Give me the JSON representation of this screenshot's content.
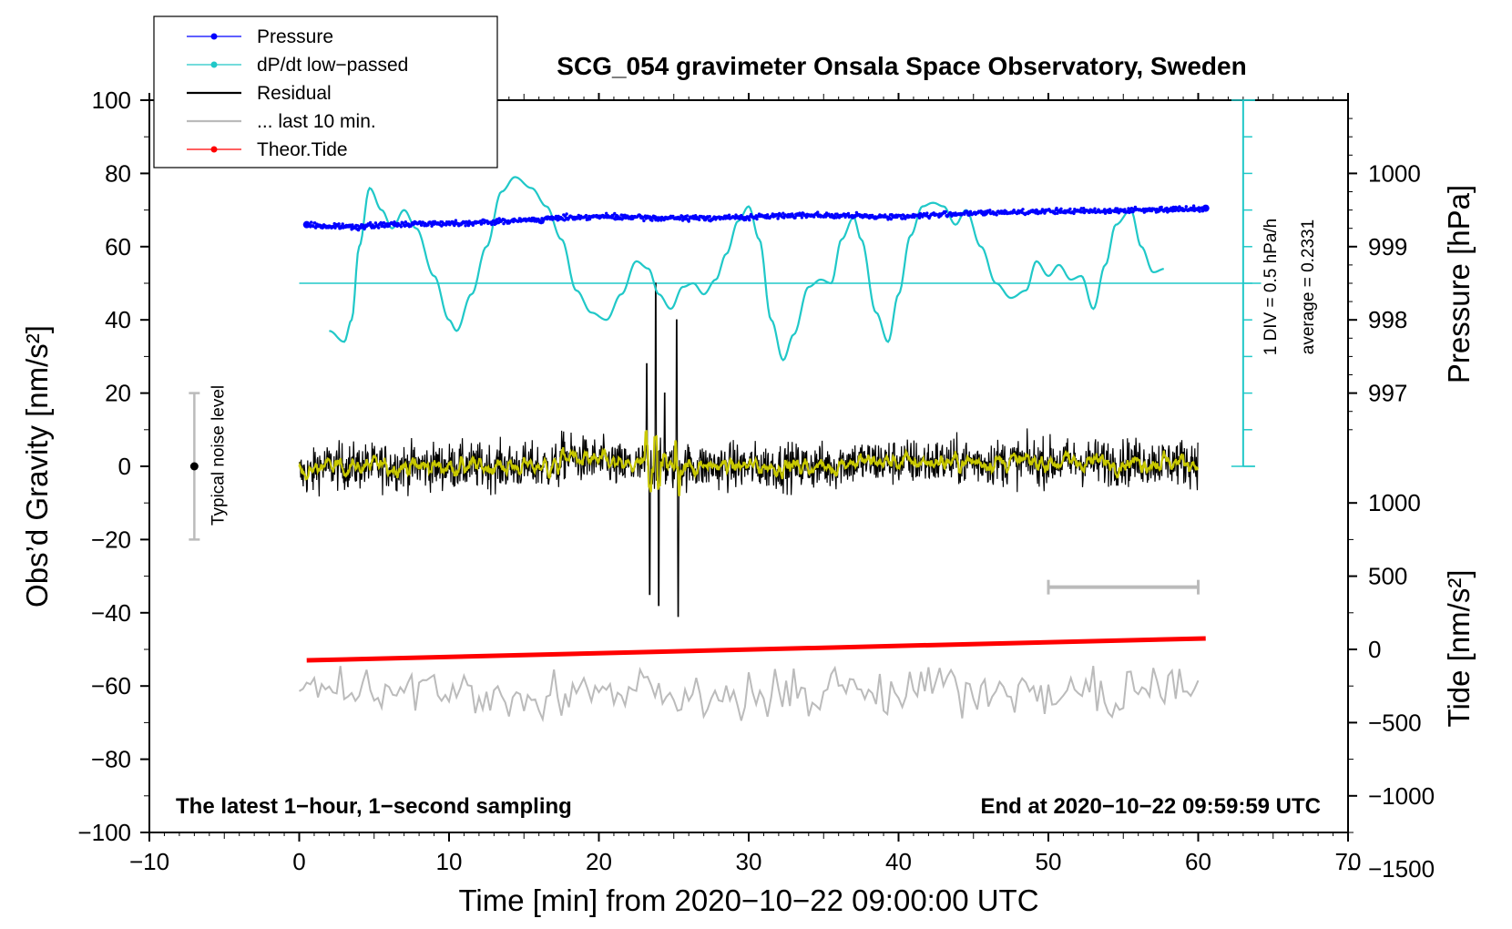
{
  "chart_data": {
    "type": "line",
    "title": "SCG_054 gravimeter Onsala Space Observatory, Sweden",
    "xlabel": "Time [min] from 2020−10−22 09:00:00 UTC",
    "ylabel": "Obs’d Gravity [nm/s²]",
    "xlim": [
      -10,
      70
    ],
    "ylim": [
      -100,
      100
    ],
    "x_ticks": [
      "−10",
      "0",
      "10",
      "20",
      "30",
      "40",
      "50",
      "60",
      "70"
    ],
    "y_ticks": [
      "−100",
      "−80",
      "−60",
      "−40",
      "−20",
      "0",
      "20",
      "40",
      "60",
      "80",
      "100"
    ],
    "right_pressure_axis": {
      "label": "Pressure [hPa]",
      "ticks": [
        {
          "value": 1000,
          "label": "1000"
        },
        {
          "value": 999,
          "label": "999"
        },
        {
          "value": 998,
          "label": "998"
        },
        {
          "value": 997,
          "label": "997"
        }
      ],
      "gravity_equiv_at_1000": 80,
      "nm_s2_per_hpa": 20
    },
    "right_tide_axis": {
      "label": "Tide [nm/s²]",
      "ticks": [
        {
          "value": 1000,
          "label": "1000"
        },
        {
          "value": 500,
          "label": "500"
        },
        {
          "value": 0,
          "label": "0"
        },
        {
          "value": -500,
          "label": "−500"
        },
        {
          "value": -1000,
          "label": "−1000"
        },
        {
          "value": -1500,
          "label": "−1500"
        }
      ],
      "gravity_equiv_at_0": -50,
      "nm_s2_per_tide_unit": 0.04
    },
    "dpdt_scale": {
      "label_div": "1 DIV = 0.5 hPa/h",
      "label_avg": "average = 0.2331",
      "baseline_gravity": 50,
      "scale_x": 63,
      "scale_min": 0,
      "scale_max": 100,
      "div_step": 10
    },
    "noise_bar": {
      "label": "Typical noise level",
      "x": -7,
      "center": 0,
      "half_range": 20
    },
    "last10_bar": {
      "x_start": 50,
      "x_end": 60,
      "y": -33
    },
    "notes": {
      "bottom_left": "The latest 1−hour, 1−second sampling",
      "bottom_right": "End at 2020−10−22 09:59:59 UTC"
    },
    "legend": [
      {
        "label": "Pressure",
        "color": "#0000ff",
        "style": "line-dot"
      },
      {
        "label": "dP/dt low−passed",
        "color": "#20c8c8",
        "style": "line-dot"
      },
      {
        "label": "Residual",
        "color": "#000000",
        "style": "line"
      },
      {
        "label": "... last 10 min.",
        "color": "#bbbbbb",
        "style": "line"
      },
      {
        "label": "Theor.Tide",
        "color": "#ff0000",
        "style": "line-dot"
      }
    ],
    "series": [
      {
        "name": "Pressure",
        "color": "#0000ff",
        "x": [
          0.5,
          2,
          4,
          6,
          8,
          10,
          12,
          14,
          16,
          18,
          20,
          22,
          24,
          26,
          28,
          30,
          32,
          34,
          36,
          38,
          40,
          42,
          44,
          46,
          48,
          50,
          52,
          54,
          56,
          58,
          60.5
        ],
        "y": [
          66,
          65.5,
          65.5,
          66,
          66.3,
          66.4,
          66.6,
          67,
          67.4,
          68,
          68.2,
          68,
          67.8,
          67.8,
          67.9,
          68,
          68.4,
          68.7,
          68.4,
          68.3,
          68.2,
          68.6,
          69,
          69.2,
          69.5,
          69.6,
          69.7,
          69.8,
          70,
          70.2,
          70.5
        ]
      },
      {
        "name": "dP/dt low−passed",
        "color": "#20c8c8",
        "x": [
          2,
          3,
          3.5,
          4,
          4.7,
          5.5,
          6.2,
          7,
          7.8,
          9,
          10,
          10.5,
          11.5,
          12.5,
          13.5,
          14.4,
          15.5,
          16.5,
          17.5,
          18.5,
          19.5,
          20.5,
          21.5,
          22.5,
          23.3,
          24,
          24.8,
          25.6,
          26.3,
          27,
          27.8,
          28.5,
          29.3,
          30,
          30.7,
          31.5,
          32.3,
          33,
          34,
          34.8,
          35.5,
          36.2,
          37,
          37.5,
          38.5,
          39.3,
          40,
          40.8,
          41.6,
          42.3,
          43,
          43.8,
          44.5,
          45.5,
          46.5,
          47.5,
          48.5,
          49.2,
          50,
          50.7,
          51.5,
          52.2,
          53,
          53.8,
          54.5,
          55.5,
          56.2,
          57,
          57.8
        ],
        "y": [
          37,
          34,
          40,
          60,
          76,
          70,
          65,
          70,
          65,
          52,
          40,
          37,
          47,
          60,
          75,
          79,
          76,
          71,
          62,
          48,
          42,
          40,
          47,
          56,
          54,
          47,
          43,
          49,
          50,
          47,
          51,
          58,
          67,
          71,
          62,
          40,
          29,
          36,
          49,
          51,
          50,
          62,
          68,
          62,
          42,
          34,
          47,
          63,
          71,
          72,
          71,
          66,
          70,
          60,
          50,
          46,
          48,
          56,
          52,
          55,
          51,
          52,
          43,
          55,
          66,
          70,
          60,
          53,
          54
        ]
      },
      {
        "name": "Residual",
        "color": "#000000",
        "x_start": 0,
        "x_end": 60,
        "noise_sd": 4.5,
        "events": [
          {
            "x": 17.5,
            "shift": 4,
            "decay": 3
          },
          {
            "x": 23.2,
            "spike": 28
          },
          {
            "x": 23.4,
            "spike": -35
          },
          {
            "x": 23.8,
            "spike": 50
          },
          {
            "x": 24.0,
            "spike": -38
          },
          {
            "x": 24.4,
            "spike": 20
          },
          {
            "x": 25.2,
            "spike": 40
          },
          {
            "x": 25.3,
            "spike": -41
          }
        ]
      },
      {
        "name": "Residual smoothed",
        "color": "#c8c800"
      },
      {
        "name": "... last 10 min.",
        "color": "#bbbbbb",
        "x_start": 0,
        "x_end": 60,
        "center": -62,
        "amplitude": 5
      },
      {
        "name": "Theor.Tide",
        "color": "#ff0000",
        "x": [
          0.5,
          60.5
        ],
        "y": [
          -53,
          -47
        ]
      }
    ]
  }
}
